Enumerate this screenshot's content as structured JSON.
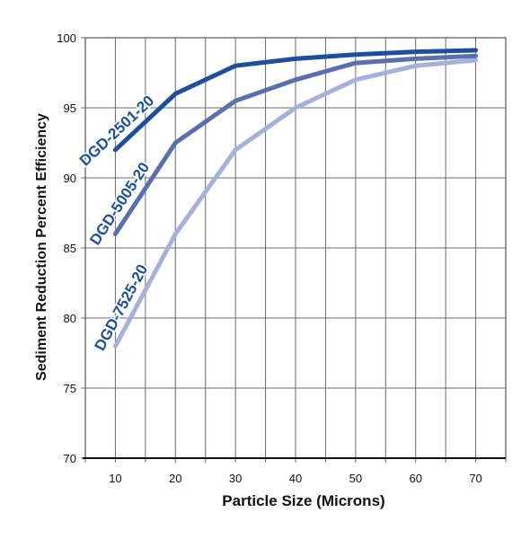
{
  "chart_data": {
    "type": "line",
    "xlabel": "Particle Size (Microns)",
    "ylabel": "Sediment Reduction Percent Efficiency",
    "x": [
      10,
      20,
      30,
      40,
      50,
      60,
      70
    ],
    "xlim": [
      5,
      75
    ],
    "ylim": [
      70,
      100
    ],
    "xticks": [
      "10",
      "20",
      "30",
      "40",
      "50",
      "60",
      "70"
    ],
    "yticks": [
      "70",
      "75",
      "80",
      "85",
      "90",
      "95",
      "100"
    ],
    "grid": true,
    "series": [
      {
        "name": "DGD-2501-20",
        "color": "#1d4f9c",
        "values": [
          92.0,
          96.0,
          98.0,
          98.5,
          98.8,
          99.0,
          99.1
        ]
      },
      {
        "name": "DGD-5005-20",
        "color": "#5a6fae",
        "values": [
          86.0,
          92.5,
          95.5,
          97.0,
          98.2,
          98.5,
          98.7
        ]
      },
      {
        "name": "DGD-7525-20",
        "color": "#a3b2da",
        "values": [
          78.0,
          86.0,
          92.0,
          95.0,
          97.0,
          98.0,
          98.4
        ]
      }
    ]
  }
}
